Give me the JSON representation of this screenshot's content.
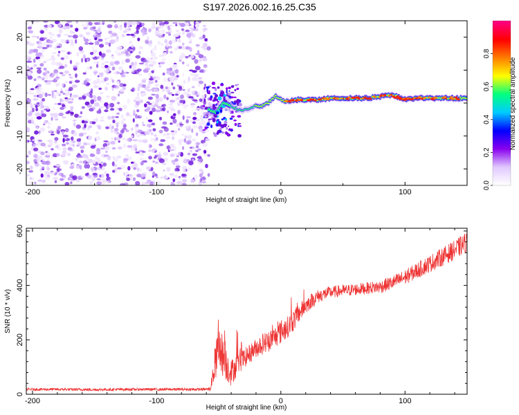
{
  "chart_data": [
    {
      "type": "heatmap",
      "title": "S197.2026.002.16.25.C35",
      "xlabel": "Height of straight line (km)",
      "ylabel": "Frequency (Hz)",
      "xlim": [
        -205,
        150
      ],
      "ylim": [
        -25,
        25
      ],
      "xticks": [
        -200,
        -100,
        0,
        100
      ],
      "yticks": [
        -20,
        -10,
        0,
        10,
        20
      ],
      "noise_region_x": [
        -205,
        -58
      ],
      "signal_track": {
        "x": [
          -58,
          -52,
          -46,
          -40,
          -34,
          -28,
          -22,
          -16,
          -10,
          -4,
          0,
          6,
          12,
          20,
          30,
          40,
          50,
          60,
          70,
          80,
          90,
          100,
          110,
          120,
          130,
          140,
          150
        ],
        "freq": [
          -2,
          -3,
          0,
          -1,
          -2,
          -2,
          -1,
          -1,
          0,
          2,
          1,
          0.5,
          1,
          1,
          1,
          1.5,
          1.5,
          1.5,
          1.5,
          2,
          2.5,
          1,
          1.5,
          1.5,
          1.5,
          1.5,
          1.5
        ]
      },
      "colorbar": {
        "label": "Normalized spectral amplitude",
        "ticks": [
          0.0,
          0.2,
          0.4,
          0.6,
          0.8
        ],
        "tick_labels": [
          "0.0",
          "0.2",
          "0.4",
          "0.6",
          "0.8"
        ],
        "range": [
          0,
          1
        ],
        "colors": [
          "#ffffff",
          "#e0c8ff",
          "#8800ee",
          "#0000ff",
          "#00ccff",
          "#00ff80",
          "#ffff00",
          "#ff8000",
          "#ff0000",
          "#ff0080"
        ]
      }
    },
    {
      "type": "line",
      "xlabel": "Height of straight line (km)",
      "ylabel": "SNR (10 * v/v)",
      "xlim": [
        -205,
        150
      ],
      "ylim": [
        0,
        610
      ],
      "xticks": [
        -200,
        -100,
        0,
        100
      ],
      "yticks": [
        0,
        200,
        400,
        600
      ],
      "series": [
        {
          "name": "SNR",
          "color": "#ee3333",
          "x": [
            -205,
            -180,
            -150,
            -120,
            -90,
            -70,
            -60,
            -57,
            -55,
            -52,
            -50,
            -45,
            -40,
            -35,
            -30,
            -25,
            -20,
            -15,
            -10,
            -5,
            0,
            5,
            10,
            15,
            20,
            25,
            30,
            40,
            50,
            60,
            70,
            80,
            90,
            100,
            110,
            120,
            130,
            140,
            150
          ],
          "y": [
            18,
            18,
            17,
            18,
            18,
            18,
            18,
            20,
            60,
            130,
            180,
            120,
            80,
            110,
            130,
            150,
            170,
            185,
            195,
            210,
            230,
            245,
            270,
            300,
            325,
            345,
            360,
            375,
            380,
            385,
            390,
            395,
            410,
            430,
            455,
            480,
            505,
            530,
            560
          ],
          "noise_amp": [
            5,
            5,
            5,
            5,
            5,
            5,
            5,
            8,
            30,
            70,
            90,
            70,
            50,
            40,
            35,
            35,
            35,
            40,
            40,
            40,
            45,
            40,
            40,
            35,
            30,
            28,
            25,
            22,
            22,
            22,
            22,
            24,
            26,
            28,
            30,
            32,
            34,
            36,
            38
          ]
        }
      ]
    }
  ]
}
